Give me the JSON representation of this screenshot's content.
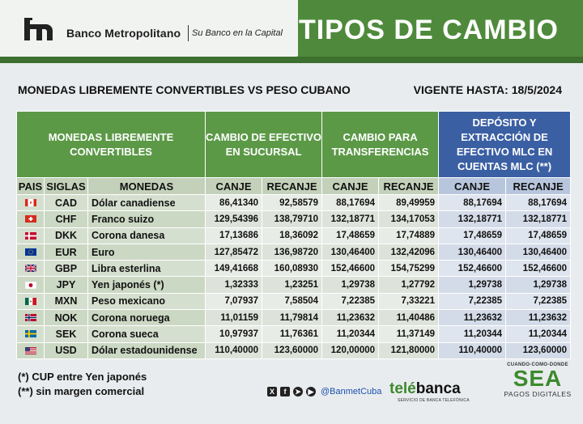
{
  "header": {
    "bank_name": "Banco Metropolitano",
    "slogan": "Su Banco en la Capital",
    "title": "TIPOS DE CAMBIO"
  },
  "subtitle": {
    "left": "MONEDAS LIBREMENTE CONVERTIBLES VS PESO CUBANO",
    "right": "VIGENTE HASTA: 18/5/2024"
  },
  "table": {
    "groups": {
      "currencies": "MONEDAS LIBREMENTE CONVERTIBLES",
      "cash": "CAMBIO DE EFECTIVO EN SUCURSAL",
      "transfer": "CAMBIO PARA TRANSFERENCIAS",
      "mlc": "DEPÓSITO Y EXTRACCIÓN DE EFECTIVO MLC EN CUENTAS MLC (**)"
    },
    "columns": {
      "pais": "PAIS",
      "siglas": "SIGLAS",
      "monedas": "MONEDAS",
      "canje": "CANJE",
      "recanje": "RECANJE"
    },
    "rows": [
      {
        "flag": "canada-flag",
        "code": "CAD",
        "name": "Dólar canadiense",
        "cash_canje": "86,41340",
        "cash_recanje": "92,58579",
        "tr_canje": "88,17694",
        "tr_recanje": "89,49959",
        "mlc_canje": "88,17694",
        "mlc_recanje": "88,17694"
      },
      {
        "flag": "switzerland-flag",
        "code": "CHF",
        "name": "Franco suizo",
        "cash_canje": "129,54396",
        "cash_recanje": "138,79710",
        "tr_canje": "132,18771",
        "tr_recanje": "134,17053",
        "mlc_canje": "132,18771",
        "mlc_recanje": "132,18771"
      },
      {
        "flag": "denmark-flag",
        "code": "DKK",
        "name": "Corona danesa",
        "cash_canje": "17,13686",
        "cash_recanje": "18,36092",
        "tr_canje": "17,48659",
        "tr_recanje": "17,74889",
        "mlc_canje": "17,48659",
        "mlc_recanje": "17,48659"
      },
      {
        "flag": "eu-flag",
        "code": "EUR",
        "name": "Euro",
        "cash_canje": "127,85472",
        "cash_recanje": "136,98720",
        "tr_canje": "130,46400",
        "tr_recanje": "132,42096",
        "mlc_canje": "130,46400",
        "mlc_recanje": "130,46400"
      },
      {
        "flag": "uk-flag",
        "code": "GBP",
        "name": "Libra esterlina",
        "cash_canje": "149,41668",
        "cash_recanje": "160,08930",
        "tr_canje": "152,46600",
        "tr_recanje": "154,75299",
        "mlc_canje": "152,46600",
        "mlc_recanje": "152,46600"
      },
      {
        "flag": "japan-flag",
        "code": "JPY",
        "name": "Yen japonés (*)",
        "cash_canje": "1,32333",
        "cash_recanje": "1,23251",
        "tr_canje": "1,29738",
        "tr_recanje": "1,27792",
        "mlc_canje": "1,29738",
        "mlc_recanje": "1,29738"
      },
      {
        "flag": "mexico-flag",
        "code": "MXN",
        "name": "Peso mexicano",
        "cash_canje": "7,07937",
        "cash_recanje": "7,58504",
        "tr_canje": "7,22385",
        "tr_recanje": "7,33221",
        "mlc_canje": "7,22385",
        "mlc_recanje": "7,22385"
      },
      {
        "flag": "norway-flag",
        "code": "NOK",
        "name": "Corona noruega",
        "cash_canje": "11,01159",
        "cash_recanje": "11,79814",
        "tr_canje": "11,23632",
        "tr_recanje": "11,40486",
        "mlc_canje": "11,23632",
        "mlc_recanje": "11,23632"
      },
      {
        "flag": "sweden-flag",
        "code": "SEK",
        "name": "Corona sueca",
        "cash_canje": "10,97937",
        "cash_recanje": "11,76361",
        "tr_canje": "11,20344",
        "tr_recanje": "11,37149",
        "mlc_canje": "11,20344",
        "mlc_recanje": "11,20344"
      },
      {
        "flag": "usa-flag",
        "code": "USD",
        "name": "Dólar estadounidense",
        "cash_canje": "110,40000",
        "cash_recanje": "123,60000",
        "tr_canje": "120,00000",
        "tr_recanje": "121,80000",
        "mlc_canje": "110,40000",
        "mlc_recanje": "123,60000"
      }
    ]
  },
  "notes": {
    "note1": "(*) CUP entre Yen japonés",
    "note2": "(**) sin margen comercial"
  },
  "footer": {
    "social_icons": [
      "x-icon",
      "facebook-icon",
      "telegram-icon",
      "youtube-icon"
    ],
    "handle": "@BanmetCuba",
    "telebanca_a": "telé",
    "telebanca_b": "banca",
    "telebanca_sub": "SERVICIO DE BANCA TELEFÓNICA",
    "sea_top": "CUANDO-COMO-DONDE",
    "sea_logo": "SEA",
    "sea_bottom": "PAGOS DIGITALES"
  },
  "colors": {
    "header_green": "#4f8a3c",
    "group_green": "#5c9947",
    "group_blue": "#3b5fa3"
  }
}
